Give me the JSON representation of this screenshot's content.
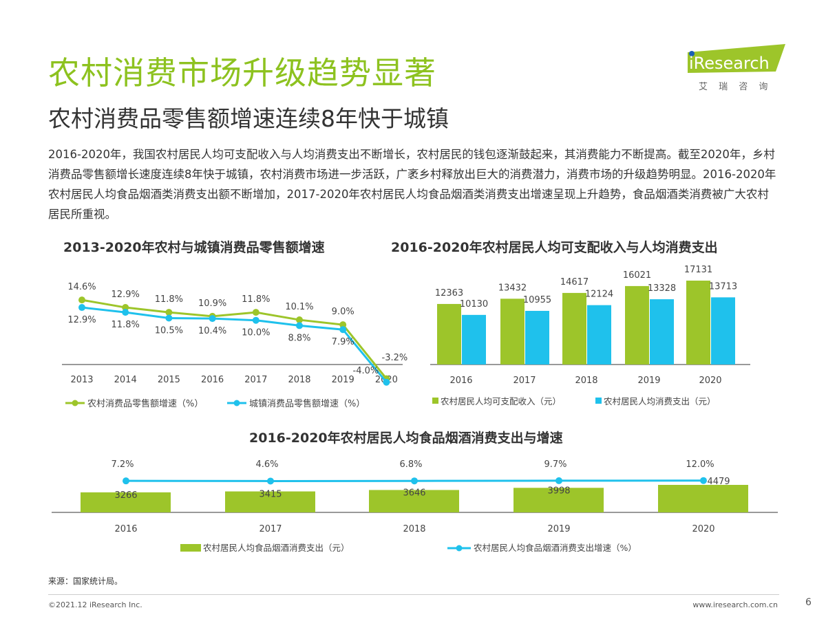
{
  "header": {
    "title": "农村消费市场升级趋势显著",
    "subtitle": "农村消费品零售额增速连续8年快于城镇",
    "logo_text": "iResearch",
    "logo_cn": "艾 瑞 咨 询"
  },
  "paragraph": "2016-2020年，我国农村居民人均可支配收入与人均消费支出不断增长，农村居民的钱包逐渐鼓起来，其消费能力不断提高。截至2020年，乡村消费品零售额增长速度连续8年快于城镇，农村消费市场进一步活跃，广袤乡村释放出巨大的消费潜力，消费市场的升级趋势明显。2016-2020年农村居民人均食品烟酒类消费支出额不断增加，2017-2020年农村居民人均食品烟酒类消费支出增速呈现上升趋势，食品烟酒类消费被广大农村居民所重视。",
  "colors": {
    "green": "#9dc52a",
    "blue": "#1fc1ec",
    "title_green": "#8dc21f"
  },
  "chart_data": [
    {
      "type": "line",
      "title": "2013-2020年农村与城镇消费品零售额增速",
      "categories": [
        "2013",
        "2014",
        "2015",
        "2016",
        "2017",
        "2018",
        "2019",
        "2020"
      ],
      "series": [
        {
          "name": "农村消费品零售额增速（%）",
          "values": [
            14.6,
            12.9,
            11.8,
            10.9,
            11.8,
            10.1,
            9.0,
            -3.2
          ],
          "labels": [
            "14.6%",
            "12.9%",
            "11.8%",
            "10.9%",
            "11.8%",
            "10.1%",
            "9.0%",
            "-3.2%"
          ]
        },
        {
          "name": "城镇消费品零售额增速（%）",
          "values": [
            12.9,
            11.8,
            10.5,
            10.4,
            10.0,
            8.8,
            7.9,
            -4.0
          ],
          "labels": [
            "12.9%",
            "11.8%",
            "10.5%",
            "10.4%",
            "10.0%",
            "8.8%",
            "7.9%",
            "-4.0%"
          ]
        }
      ],
      "legend": "bottom"
    },
    {
      "type": "bar",
      "title": "2016-2020年农村居民人均可支配收入与人均消费支出",
      "categories": [
        "2016",
        "2017",
        "2018",
        "2019",
        "2020"
      ],
      "series": [
        {
          "name": "农村居民人均可支配收入（元）",
          "values": [
            12363,
            13432,
            14617,
            16021,
            17131
          ]
        },
        {
          "name": "农村居民人均消费支出（元）",
          "values": [
            10130,
            10955,
            12124,
            13328,
            13713
          ]
        }
      ],
      "legend": "bottom"
    },
    {
      "type": "bar",
      "title": "2016-2020年农村居民人均食品烟酒消费支出与增速",
      "categories": [
        "2016",
        "2017",
        "2018",
        "2019",
        "2020"
      ],
      "series": [
        {
          "name": "农村居民人均食品烟酒消费支出（元）",
          "values": [
            3266,
            3415,
            3646,
            3998,
            4479
          ]
        },
        {
          "name": "农村居民人均食品烟酒消费支出增速（%）",
          "type": "line",
          "values": [
            7.2,
            4.6,
            6.8,
            9.7,
            12.0
          ],
          "labels": [
            "7.2%",
            "4.6%",
            "6.8%",
            "9.7%",
            "12.0%"
          ]
        }
      ],
      "legend": "bottom"
    }
  ],
  "footer": {
    "source": "来源：国家统计局。",
    "copyright": "©2021.12 iResearch Inc.",
    "site": "www.iresearch.com.cn",
    "page": "6"
  }
}
